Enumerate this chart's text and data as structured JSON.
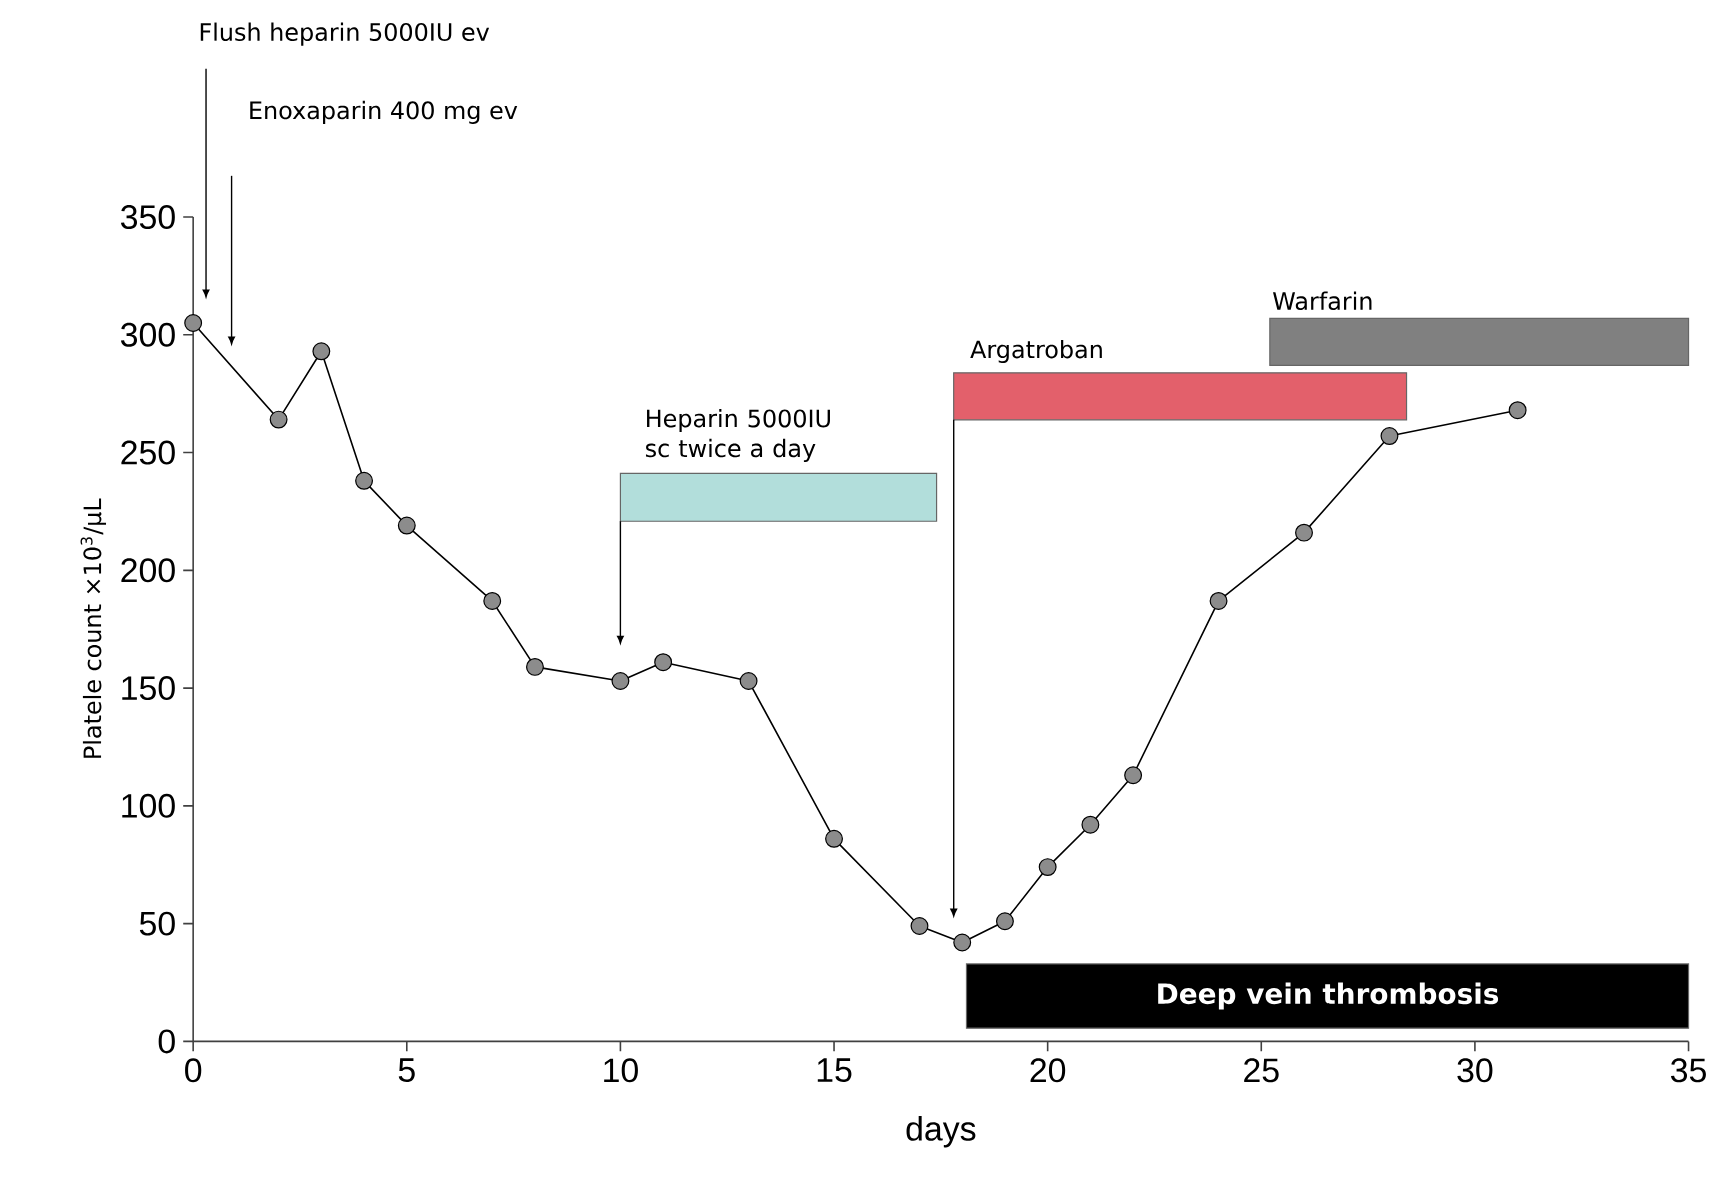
{
  "chart_data": {
    "type": "line",
    "xlabel": "days",
    "ylabel": "Platele count ×10$^{3}$/µL",
    "x": [
      0,
      2,
      3,
      4,
      5,
      7,
      8,
      10,
      11,
      13,
      15,
      17,
      18,
      19,
      20,
      21,
      22,
      24,
      26,
      28,
      31
    ],
    "series": [
      {
        "color": "#000000",
        "values": [
          305,
          264,
          293,
          238,
          219,
          187,
          159,
          153,
          161,
          153,
          86,
          49,
          42,
          51,
          74,
          92,
          113,
          187,
          216,
          257,
          268
        ]
      }
    ],
    "marker": "circle",
    "xlim": [
      0,
      35
    ],
    "ylim": [
      0,
      350
    ],
    "xticks": [
      0,
      5,
      10,
      15,
      20,
      25,
      30,
      35
    ],
    "yticks": [
      0,
      50,
      100,
      150,
      200,
      250,
      300,
      350
    ],
    "bands": [
      {
        "axis": "x",
        "from": 10,
        "to": 17.4,
        "color": "#b2dedb"
      },
      {
        "axis": "x",
        "from": 17.8,
        "to": 28.4,
        "color": "#e3606b"
      },
      {
        "axis": "x",
        "from": 25.2,
        "to": 35,
        "label": "Warfarin",
        "color": "#808080"
      },
      {
        "axis": "x",
        "from": 18.1,
        "to": 35,
        "label": "Deep vein thrombosis",
        "color": "#000000"
      }
    ],
    "annotations": [
      "Flush heparin 5000IU ev",
      "Enoxaparin 400 mg ev",
      "Heparin 5000IU sc twice a day",
      "Argatroban"
    ]
  }
}
